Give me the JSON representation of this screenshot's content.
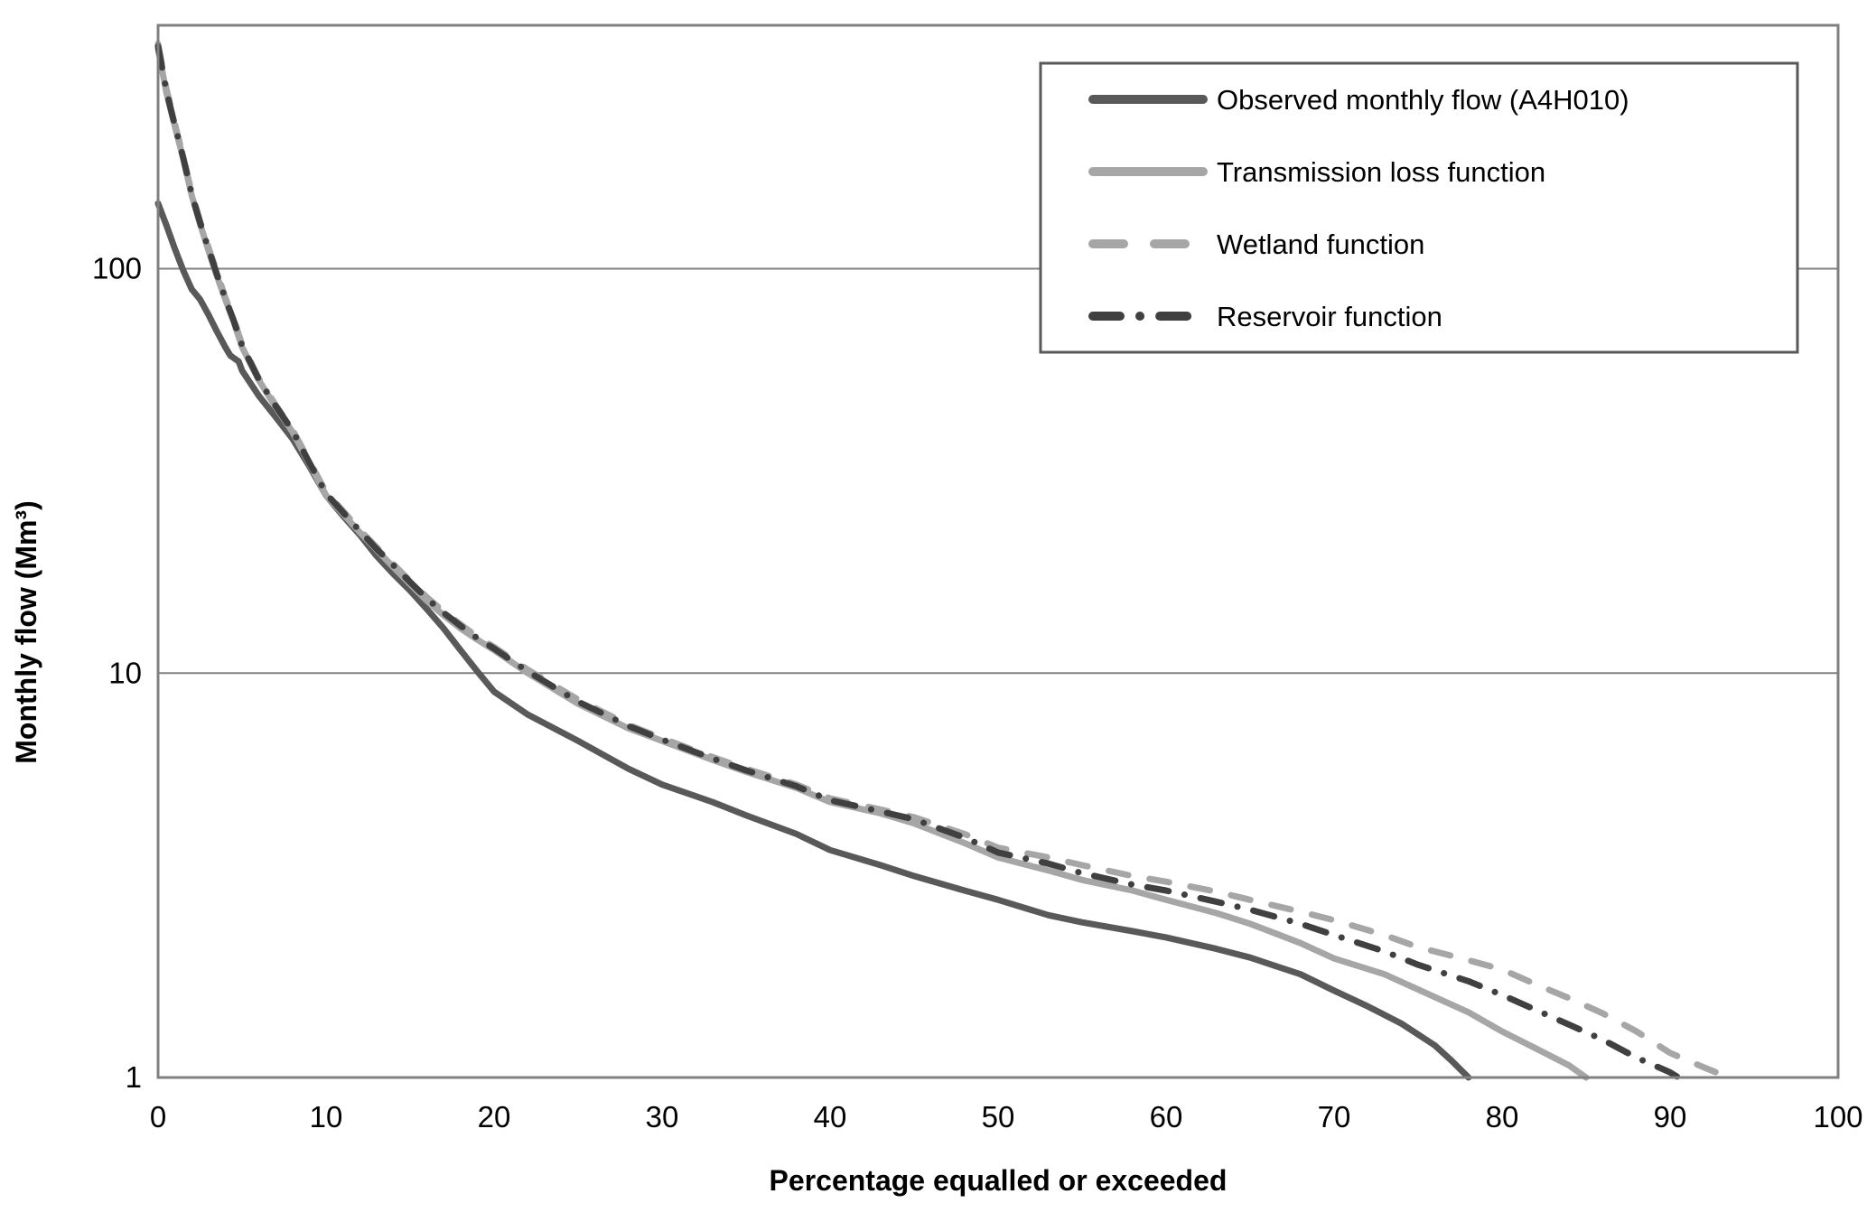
{
  "chart_data": {
    "type": "line",
    "title": "",
    "xlabel": "Percentage equalled or exceeded",
    "ylabel": "Monthly flow (Mm³)",
    "x_axis": {
      "min": 0,
      "max": 100,
      "ticks": [
        0,
        10,
        20,
        30,
        40,
        50,
        60,
        70,
        80,
        90,
        100
      ]
    },
    "y_axis": {
      "scale": "log",
      "min": 1,
      "max": 400,
      "ticks": [
        1,
        10,
        100
      ],
      "tick_labels": [
        "1",
        "10",
        "100"
      ]
    },
    "grid": "horizontal-gridlines-at-decades",
    "legend_position": "top-right-inside",
    "series": [
      {
        "name": "Observed monthly flow (A4H010)",
        "color": "#595959",
        "style": "solid",
        "points": [
          [
            0,
            145
          ],
          [
            0.5,
            128
          ],
          [
            1,
            112
          ],
          [
            1.5,
            99
          ],
          [
            2,
            89
          ],
          [
            2.5,
            84
          ],
          [
            3,
            77
          ],
          [
            3.5,
            70
          ],
          [
            4,
            64
          ],
          [
            4.3,
            61
          ],
          [
            4.8,
            59
          ],
          [
            5,
            56
          ],
          [
            6,
            48.5
          ],
          [
            7,
            43
          ],
          [
            8,
            38
          ],
          [
            9,
            32.5
          ],
          [
            10,
            27.5
          ],
          [
            11,
            24.5
          ],
          [
            12,
            22
          ],
          [
            13,
            19.5
          ],
          [
            14,
            17.6
          ],
          [
            15,
            16
          ],
          [
            16,
            14.4
          ],
          [
            17,
            12.9
          ],
          [
            18,
            11.4
          ],
          [
            19,
            10.1
          ],
          [
            20,
            9
          ],
          [
            22,
            7.9
          ],
          [
            25,
            6.8
          ],
          [
            28,
            5.8
          ],
          [
            30,
            5.3
          ],
          [
            33,
            4.8
          ],
          [
            35,
            4.45
          ],
          [
            38,
            4
          ],
          [
            40,
            3.65
          ],
          [
            43,
            3.35
          ],
          [
            45,
            3.15
          ],
          [
            48,
            2.9
          ],
          [
            50,
            2.75
          ],
          [
            53,
            2.52
          ],
          [
            55,
            2.42
          ],
          [
            58,
            2.3
          ],
          [
            60,
            2.22
          ],
          [
            63,
            2.08
          ],
          [
            65,
            1.98
          ],
          [
            68,
            1.8
          ],
          [
            70,
            1.64
          ],
          [
            72,
            1.5
          ],
          [
            74,
            1.36
          ],
          [
            76,
            1.2
          ],
          [
            77,
            1.1
          ],
          [
            78,
            1
          ]
        ]
      },
      {
        "name": "Transmission loss function",
        "color": "#a6a6a6",
        "style": "solid",
        "points": [
          [
            0,
            350
          ],
          [
            0.5,
            272
          ],
          [
            1,
            225
          ],
          [
            1.5,
            187
          ],
          [
            2,
            152
          ],
          [
            2.5,
            129
          ],
          [
            3,
            111
          ],
          [
            3.5,
            96
          ],
          [
            4,
            84
          ],
          [
            4.5,
            74
          ],
          [
            5,
            64
          ],
          [
            6,
            53
          ],
          [
            7,
            45.5
          ],
          [
            8,
            39.5
          ],
          [
            9,
            33
          ],
          [
            10,
            27.5
          ],
          [
            11,
            24.8
          ],
          [
            12,
            22.3
          ],
          [
            13,
            20.2
          ],
          [
            14,
            18.3
          ],
          [
            15,
            16.6
          ],
          [
            16,
            15.1
          ],
          [
            17,
            13.9
          ],
          [
            18,
            12.9
          ],
          [
            19,
            12.1
          ],
          [
            20,
            11.4
          ],
          [
            22,
            10
          ],
          [
            25,
            8.4
          ],
          [
            28,
            7.3
          ],
          [
            30,
            6.8
          ],
          [
            33,
            6.1
          ],
          [
            35,
            5.7
          ],
          [
            38,
            5.2
          ],
          [
            40,
            4.8
          ],
          [
            43,
            4.5
          ],
          [
            45,
            4.25
          ],
          [
            48,
            3.8
          ],
          [
            50,
            3.5
          ],
          [
            53,
            3.25
          ],
          [
            55,
            3.08
          ],
          [
            58,
            2.9
          ],
          [
            60,
            2.75
          ],
          [
            63,
            2.55
          ],
          [
            65,
            2.4
          ],
          [
            68,
            2.15
          ],
          [
            70,
            1.97
          ],
          [
            73,
            1.8
          ],
          [
            75,
            1.65
          ],
          [
            78,
            1.45
          ],
          [
            80,
            1.3
          ],
          [
            82,
            1.18
          ],
          [
            84,
            1.07
          ],
          [
            85,
            1
          ]
        ]
      },
      {
        "name": "Wetland function",
        "color": "#a6a6a6",
        "style": "dashed",
        "points": [
          [
            0,
            360
          ],
          [
            0.5,
            278
          ],
          [
            1,
            228
          ],
          [
            1.5,
            189
          ],
          [
            2,
            154
          ],
          [
            2.5,
            131
          ],
          [
            3,
            113
          ],
          [
            3.5,
            98
          ],
          [
            4,
            85
          ],
          [
            4.5,
            75
          ],
          [
            5,
            65
          ],
          [
            6,
            53.5
          ],
          [
            7,
            46
          ],
          [
            8,
            40
          ],
          [
            9,
            33.5
          ],
          [
            10,
            28
          ],
          [
            11,
            25.2
          ],
          [
            12,
            22.6
          ],
          [
            13,
            20.5
          ],
          [
            14,
            18.6
          ],
          [
            15,
            16.9
          ],
          [
            16,
            15.4
          ],
          [
            17,
            14.2
          ],
          [
            18,
            13.2
          ],
          [
            19,
            12.3
          ],
          [
            20,
            11.6
          ],
          [
            22,
            10.2
          ],
          [
            25,
            8.6
          ],
          [
            28,
            7.45
          ],
          [
            30,
            6.9
          ],
          [
            33,
            6.2
          ],
          [
            35,
            5.8
          ],
          [
            38,
            5.3
          ],
          [
            40,
            4.9
          ],
          [
            43,
            4.6
          ],
          [
            45,
            4.4
          ],
          [
            48,
            4
          ],
          [
            50,
            3.7
          ],
          [
            53,
            3.5
          ],
          [
            55,
            3.35
          ],
          [
            58,
            3.15
          ],
          [
            60,
            3.05
          ],
          [
            63,
            2.88
          ],
          [
            65,
            2.75
          ],
          [
            68,
            2.57
          ],
          [
            70,
            2.45
          ],
          [
            73,
            2.25
          ],
          [
            75,
            2.1
          ],
          [
            78,
            1.95
          ],
          [
            80,
            1.85
          ],
          [
            82,
            1.7
          ],
          [
            84,
            1.57
          ],
          [
            86,
            1.44
          ],
          [
            88,
            1.3
          ],
          [
            90,
            1.15
          ],
          [
            92,
            1.06
          ],
          [
            93.5,
            1
          ]
        ]
      },
      {
        "name": "Reservoir function",
        "color": "#404040",
        "style": "dash-dot",
        "points": [
          [
            0,
            355
          ],
          [
            0.5,
            275
          ],
          [
            1,
            226
          ],
          [
            1.5,
            188
          ],
          [
            2,
            153
          ],
          [
            2.5,
            130
          ],
          [
            3,
            112
          ],
          [
            3.5,
            97
          ],
          [
            4,
            84.5
          ],
          [
            4.5,
            74.5
          ],
          [
            5,
            64.5
          ],
          [
            6,
            53.2
          ],
          [
            7,
            45.8
          ],
          [
            8,
            39.8
          ],
          [
            9,
            33.2
          ],
          [
            10,
            27.8
          ],
          [
            11,
            25
          ],
          [
            12,
            22.5
          ],
          [
            13,
            20.3
          ],
          [
            14,
            18.5
          ],
          [
            15,
            16.8
          ],
          [
            16,
            15.3
          ],
          [
            17,
            14.1
          ],
          [
            18,
            13.1
          ],
          [
            19,
            12.2
          ],
          [
            20,
            11.5
          ],
          [
            22,
            10.1
          ],
          [
            25,
            8.5
          ],
          [
            28,
            7.4
          ],
          [
            30,
            6.85
          ],
          [
            33,
            6.15
          ],
          [
            35,
            5.75
          ],
          [
            38,
            5.25
          ],
          [
            40,
            4.85
          ],
          [
            43,
            4.55
          ],
          [
            45,
            4.35
          ],
          [
            48,
            3.92
          ],
          [
            50,
            3.6
          ],
          [
            53,
            3.38
          ],
          [
            55,
            3.2
          ],
          [
            58,
            3
          ],
          [
            60,
            2.9
          ],
          [
            63,
            2.72
          ],
          [
            65,
            2.6
          ],
          [
            68,
            2.4
          ],
          [
            70,
            2.25
          ],
          [
            73,
            2.05
          ],
          [
            75,
            1.9
          ],
          [
            78,
            1.73
          ],
          [
            80,
            1.6
          ],
          [
            82,
            1.47
          ],
          [
            84,
            1.35
          ],
          [
            86,
            1.24
          ],
          [
            88,
            1.12
          ],
          [
            90,
            1.03
          ],
          [
            90.5,
            1
          ]
        ]
      }
    ],
    "colors": {
      "plot_border": "#808080",
      "gridline": "#808080",
      "legend_border": "#595959",
      "background": "#ffffff"
    }
  }
}
